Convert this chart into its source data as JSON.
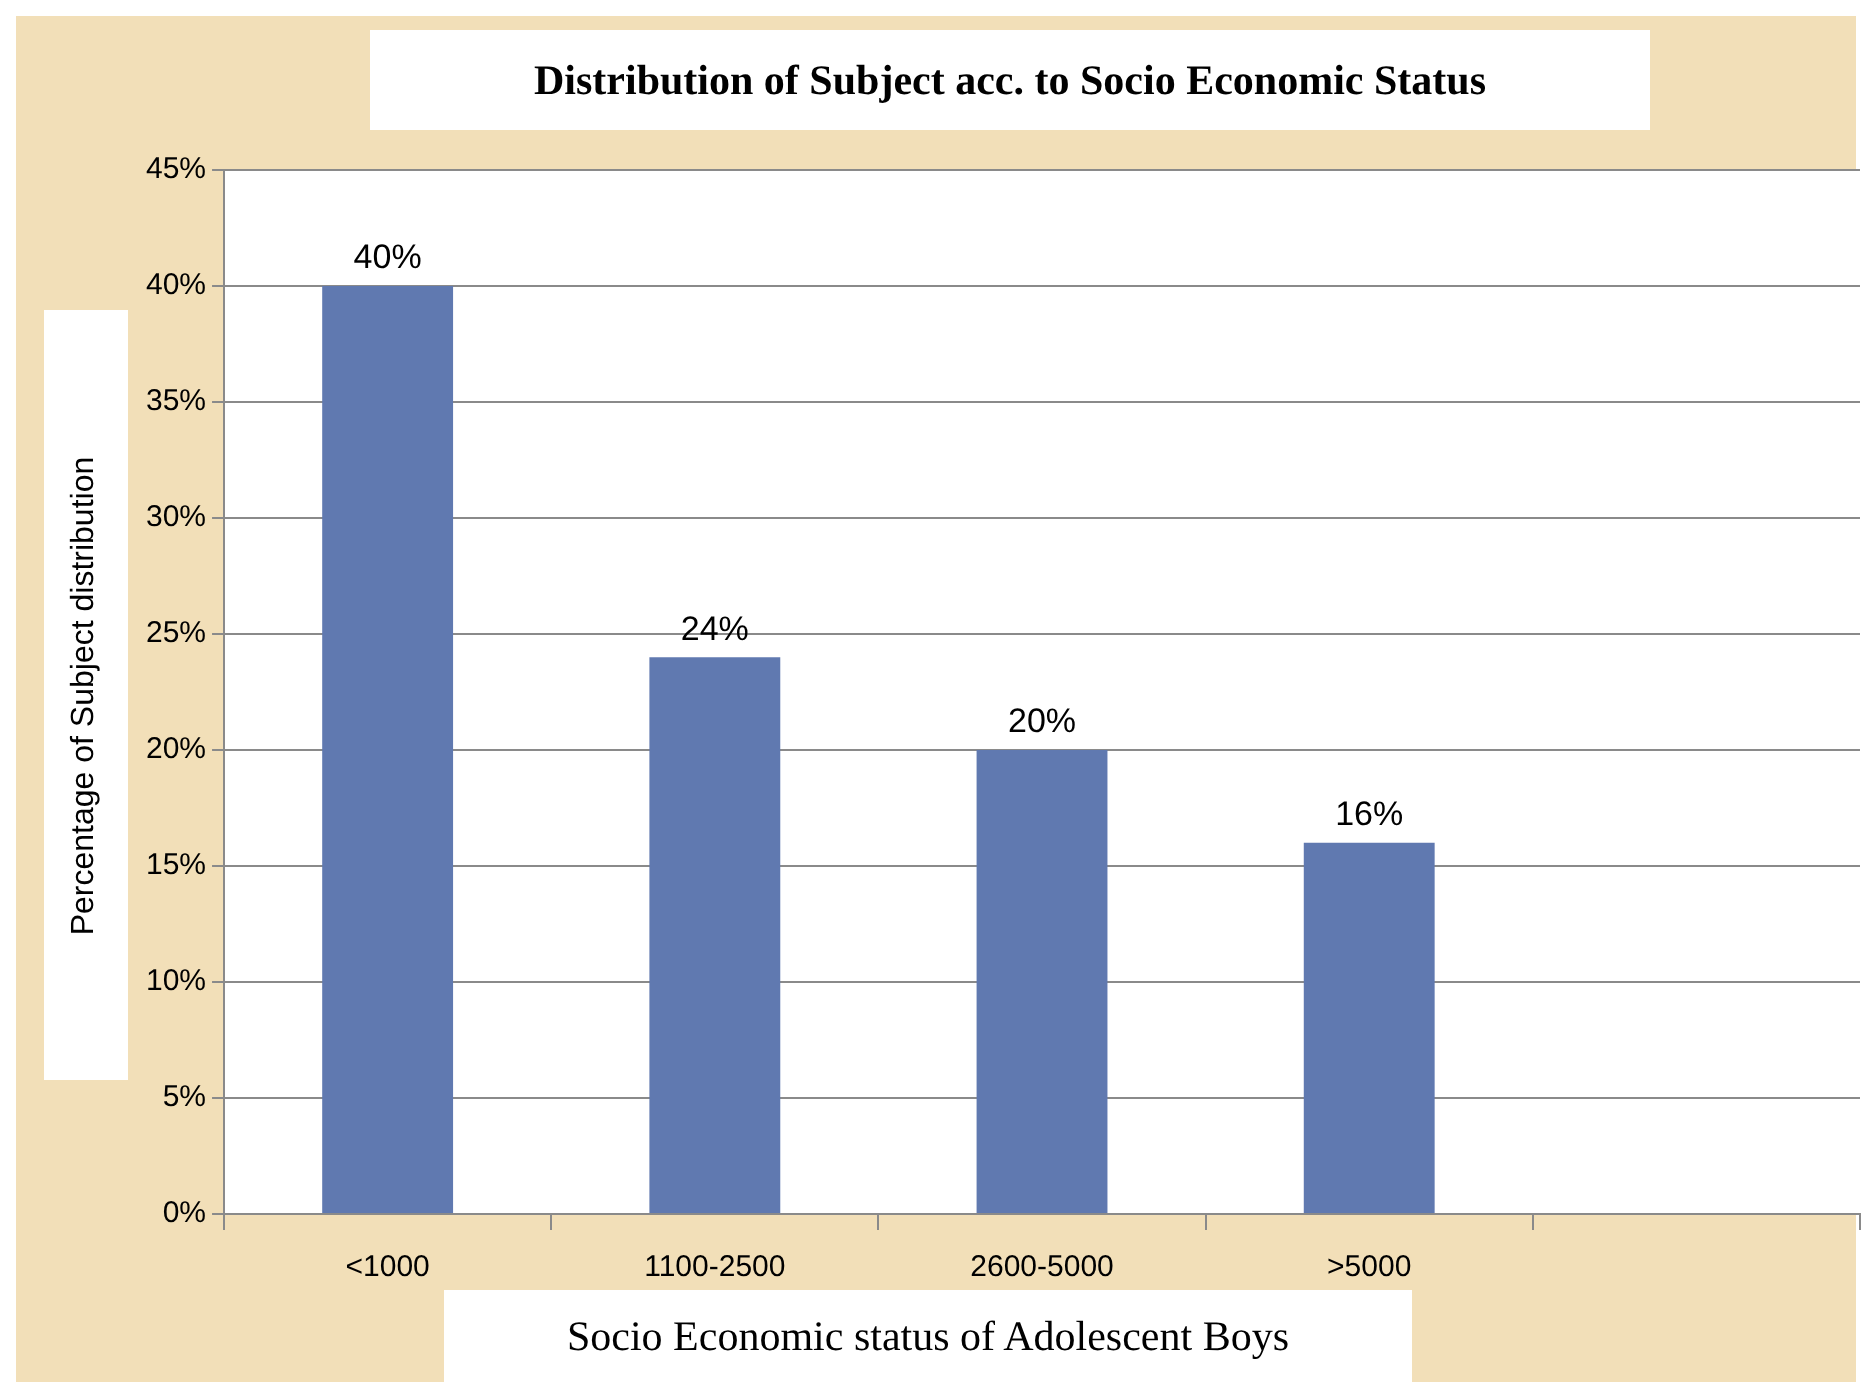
{
  "chart_data": {
    "type": "bar",
    "title": "Distribution of Subject acc. to Socio Economic Status",
    "xlabel": "Socio Economic status of Adolescent Boys",
    "ylabel": "Percentage of Subject distribution",
    "categories": [
      "<1000",
      "1100-2500",
      "2600-5000",
      ">5000",
      null
    ],
    "values": [
      40,
      24,
      20,
      16,
      null
    ],
    "value_labels": [
      "40%",
      "24%",
      "20%",
      "16%",
      null
    ],
    "color": "#6079b0",
    "ylim": [
      0,
      45
    ],
    "yticks": [
      {
        "value": 0,
        "label": "0%"
      },
      {
        "value": 5,
        "label": "5%"
      },
      {
        "value": 10,
        "label": "10%"
      },
      {
        "value": 15,
        "label": "15%"
      },
      {
        "value": 20,
        "label": "20%"
      },
      {
        "value": 25,
        "label": "25%"
      },
      {
        "value": 30,
        "label": "30%"
      },
      {
        "value": 35,
        "label": "35%"
      },
      {
        "value": 40,
        "label": "40%"
      },
      {
        "value": 45,
        "label": "45%"
      }
    ],
    "grid": "y",
    "legend": false
  }
}
